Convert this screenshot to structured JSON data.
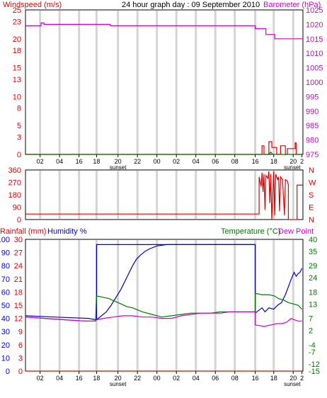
{
  "colors": {
    "wind_red": "#e00000",
    "baro_magenta": "#cc00cc",
    "temp_green": "#007700",
    "humidity_blue": "#0000cc",
    "grid": "#d4d4d4",
    "axis": "#000000"
  },
  "header": {
    "title": "24 hour graph day : 09 September 2010",
    "left_label": "Windspeed (m/s)",
    "right_label": "Barometer (hPa)"
  },
  "chart_data": [
    {
      "type": "line",
      "id": "wind_baro",
      "title": "24 hour graph day : 09 September 2010",
      "ylabel": "Windspeed (m/s)",
      "ylabel_right": "Barometer (hPa)",
      "ylim": [
        0,
        25
      ],
      "yticks": [
        0,
        3,
        5,
        8,
        10,
        13,
        15,
        18,
        20,
        23,
        25
      ],
      "ylim_right": [
        975,
        1025
      ],
      "yticks_right": [
        975,
        980,
        985,
        990,
        995,
        1000,
        1005,
        1010,
        1015,
        1020,
        1025
      ],
      "series": [
        {
          "name": "Barometer",
          "axis": "right",
          "color": "#cc00cc",
          "x": [
            0,
            1.6,
            1.6,
            1.9,
            1.9,
            8.7,
            8.7,
            23.6,
            23.6,
            24.7,
            24.7,
            25.6,
            25.6,
            28.5
          ],
          "values": [
            1019.5,
            1019.5,
            1020.5,
            1020.5,
            1020.0,
            1020.0,
            1019.5,
            1019.5,
            1018.5,
            1018.5,
            1016.5,
            1016.5,
            1015.0,
            1015.0
          ]
        },
        {
          "name": "Windspeed",
          "axis": "left",
          "color": "#e00000",
          "x": [
            0,
            24.3,
            24.3,
            24.5,
            24.5,
            25.0,
            25.0,
            25.3,
            25.3,
            25.8,
            25.8,
            26.2,
            26.2,
            26.7,
            26.7,
            26.9,
            26.9,
            27.7,
            27.7,
            27.8,
            27.8,
            28.5
          ],
          "values": [
            0,
            0,
            1.5,
            1.5,
            0,
            0,
            2.2,
            2.2,
            1.2,
            1.2,
            0,
            0,
            1.5,
            1.5,
            0,
            0,
            1.0,
            1.0,
            2.0,
            2.0,
            0,
            0
          ]
        },
        {
          "name": "Wind gust",
          "axis": "left",
          "color": "#007700",
          "x": [
            0,
            25.0,
            25.2,
            25.4,
            28.5
          ],
          "values": [
            0,
            0,
            0.4,
            0,
            0
          ]
        }
      ]
    },
    {
      "type": "line",
      "id": "wind_direction",
      "ylim": [
        0,
        360
      ],
      "yticks": [
        0,
        90,
        180,
        270,
        360
      ],
      "ytick_right_labels": [
        "N",
        "E",
        "S",
        "W",
        "N"
      ],
      "series": [
        {
          "name": "Wind direction",
          "color": "#e00000",
          "x": [
            0,
            24.0,
            24.0,
            24.2,
            24.3,
            24.4,
            24.5,
            24.6,
            24.7,
            24.9,
            25.0,
            25.1,
            25.2,
            25.3,
            25.5,
            25.6,
            25.7,
            25.9,
            26.0,
            26.1,
            26.2,
            26.3,
            26.4,
            26.6,
            26.7,
            26.9,
            27.0,
            27.0,
            27.1,
            27.1,
            27.9,
            27.9,
            28.5
          ],
          "values": [
            40,
            40,
            310,
            240,
            340,
            200,
            330,
            70,
            320,
            300,
            350,
            120,
            330,
            0,
            350,
            30,
            330,
            290,
            310,
            60,
            310,
            300,
            290,
            30,
            290,
            280,
            250,
            0,
            0,
            0,
            0,
            250,
            250
          ]
        }
      ]
    },
    {
      "type": "line",
      "id": "rain_humidity_temp",
      "ylabel": "Rainfall (mm)",
      "ylabel2": "Humidity %",
      "ylabel_right": "Temperature (°C)",
      "ylabel_right2": "Dew Point",
      "ylim": [
        0,
        100
      ],
      "yticks_humidity": [
        0,
        10,
        20,
        30,
        40,
        50,
        60,
        70,
        80,
        90,
        100
      ],
      "yticks_rainfall": [
        0,
        3,
        6,
        9,
        12,
        15,
        18,
        21,
        24,
        27,
        30
      ],
      "ylim_right": [
        -15,
        40
      ],
      "yticks_temperature": [
        -15,
        -12,
        -7,
        -4,
        2,
        7,
        13,
        18,
        24,
        29,
        35,
        40
      ],
      "series": [
        {
          "name": "Humidity",
          "color": "#0000cc",
          "x": [
            0,
            3.0,
            6.5,
            7.2,
            7.3,
            7.3,
            8.5,
            9.5,
            10.5,
            11.0,
            11.3,
            11.7,
            12.2,
            12.7,
            13.3,
            14.0,
            14.8,
            15.7,
            16.5,
            23.6,
            23.6,
            24.3,
            24.6,
            25.0,
            25.5,
            25.9,
            26.3,
            26.7,
            27.0,
            27.3,
            27.6,
            27.8,
            28.0,
            28.2,
            28.4
          ],
          "values": [
            42,
            41,
            40,
            39,
            39,
            96,
            96,
            96,
            96,
            96,
            96,
            96,
            96,
            96,
            96,
            96,
            96,
            96,
            96,
            96,
            44,
            48,
            45,
            48,
            47,
            50,
            52,
            58,
            64,
            70,
            75,
            72,
            74,
            75,
            78
          ]
        },
        {
          "name": "Humidity (curve)",
          "color": "#0000cc",
          "x": [
            7.3,
            8.3,
            8.8,
            9.3,
            9.8,
            10.2,
            10.6,
            11.0,
            11.4,
            11.8,
            12.3,
            12.8,
            13.5,
            14.5,
            16.0,
            18.0,
            23.6
          ],
          "values": [
            39,
            45,
            50,
            56,
            62,
            68,
            74,
            80,
            85,
            88,
            91,
            93,
            95,
            96,
            96,
            96,
            96
          ]
        },
        {
          "name": "Temperature",
          "color": "#007700",
          "x": [
            0,
            2.0,
            4.0,
            6.0,
            7.2,
            7.3,
            8.0,
            8.6,
            9.2,
            9.8,
            10.4,
            11.0,
            12.0,
            13.0,
            14.0,
            15.0,
            16.0,
            17.0,
            18.0,
            19.0,
            20.0,
            21.0,
            22.0,
            23.6,
            23.6,
            24.3,
            25.0,
            25.6,
            26.0,
            26.5,
            27.0,
            27.5,
            28.0,
            28.4
          ],
          "values": [
            41,
            40,
            39,
            38,
            38,
            57,
            56,
            55,
            53,
            51,
            49,
            48,
            45,
            43,
            41,
            42,
            43,
            44,
            44,
            44,
            45,
            45,
            45,
            45,
            59,
            58,
            58,
            57,
            55,
            54,
            52,
            51,
            50,
            47
          ]
        },
        {
          "name": "Dew Point",
          "color": "#cc00cc",
          "x": [
            0,
            2.0,
            4.0,
            6.0,
            7.2,
            7.3,
            8.0,
            9.0,
            10.0,
            11.0,
            12.0,
            13.0,
            14.0,
            15.0,
            16.0,
            17.0,
            18.0,
            19.0,
            20.0,
            21.0,
            22.0,
            23.6,
            23.6,
            24.5,
            25.2,
            25.8,
            26.3,
            26.8,
            27.3,
            27.6,
            28.0,
            28.4
          ],
          "values": [
            41,
            40,
            39,
            38,
            38,
            39,
            40,
            41,
            42,
            42,
            41,
            41,
            40,
            40,
            42,
            43,
            44,
            44,
            44,
            45,
            45,
            45,
            35,
            34,
            35,
            36,
            36,
            37,
            40,
            39,
            38,
            38
          ]
        },
        {
          "name": "Rainfall",
          "color": "#e00000",
          "x": [
            0,
            28.5
          ],
          "values": [
            0,
            0
          ]
        }
      ]
    }
  ],
  "x_axis": {
    "range": [
      0,
      28.5
    ],
    "ticks": [
      {
        "x": 1.5,
        "label": "02"
      },
      {
        "x": 3.5,
        "label": "04"
      },
      {
        "x": 5.5,
        "label": "16"
      },
      {
        "x": 7.3,
        "label": "18"
      },
      {
        "x": 9.5,
        "label": "20"
      },
      {
        "x": 11.5,
        "label": "22"
      },
      {
        "x": 13.5,
        "label": "00"
      },
      {
        "x": 15.5,
        "label": "02"
      },
      {
        "x": 17.5,
        "label": "04"
      },
      {
        "x": 19.5,
        "label": "06"
      },
      {
        "x": 21.5,
        "label": "08"
      },
      {
        "x": 23.6,
        "label": "16"
      },
      {
        "x": 25.5,
        "label": "18"
      },
      {
        "x": 27.5,
        "label": "20"
      },
      {
        "x": 28.4,
        "label": "2"
      }
    ],
    "sublabels": [
      {
        "x": 9.5,
        "label": "sunset"
      },
      {
        "x": 27.4,
        "label": "sunset"
      }
    ],
    "grid_x": [
      1.5,
      3.5,
      5.5,
      7.3,
      9.5,
      11.5,
      13.5,
      15.5,
      17.5,
      19.5,
      21.5,
      23.6,
      25.5,
      27.5
    ]
  },
  "bottom_header": {
    "rainfall_label": "Rainfall (mm)",
    "humidity_label": "Humidity %",
    "temperature_label": "Temperature (°C)",
    "dewpoint_label": "Dew Point"
  }
}
